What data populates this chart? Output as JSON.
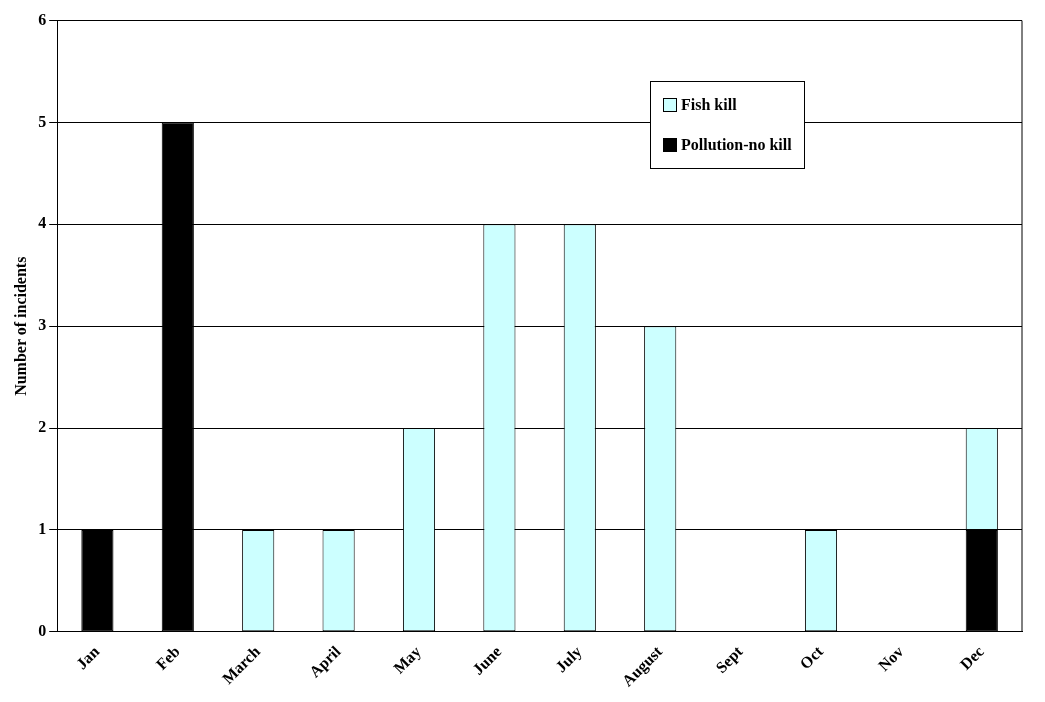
{
  "chart_data": {
    "type": "bar",
    "ylabel": "Number of incidents",
    "categories": [
      "Jan",
      "Feb",
      "March",
      "April",
      "May",
      "June",
      "July",
      "August",
      "Sept",
      "Oct",
      "Nov",
      "Dec"
    ],
    "series": [
      {
        "name": "Pollution-no kill",
        "color": "#000000",
        "values": [
          1,
          5,
          0,
          0,
          0,
          0,
          0,
          0,
          0,
          0,
          0,
          1
        ]
      },
      {
        "name": "Fish kill",
        "color": "#ccffff",
        "values": [
          0,
          0,
          1,
          1,
          2,
          4,
          4,
          3,
          0,
          1,
          0,
          1
        ]
      }
    ],
    "stacked": true,
    "ylim": [
      0,
      6
    ],
    "yticks": [
      0,
      1,
      2,
      3,
      4,
      5,
      6
    ],
    "grid": "y",
    "legend": "top right"
  }
}
